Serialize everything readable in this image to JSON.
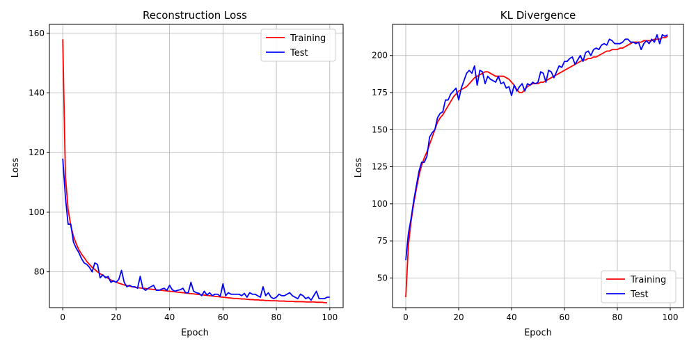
{
  "chart_data": [
    {
      "type": "line",
      "title": "Reconstruction Loss",
      "xlabel": "Epoch",
      "ylabel": "Loss",
      "xlim": [
        -5,
        105
      ],
      "ylim": [
        68,
        163
      ],
      "xticks": [
        0,
        20,
        40,
        60,
        80,
        100
      ],
      "yticks": [
        80,
        100,
        120,
        140,
        160
      ],
      "grid": true,
      "legend_position": "upper right",
      "series": [
        {
          "name": "Training",
          "color": "#ff0000",
          "y": [
            158.0,
            112.0,
            101.0,
            95.5,
            92.0,
            89.5,
            87.5,
            86.0,
            84.8,
            83.5,
            82.5,
            81.5,
            80.8,
            80.0,
            79.4,
            78.8,
            78.3,
            77.8,
            77.3,
            76.9,
            76.5,
            76.2,
            75.9,
            75.6,
            75.4,
            75.2,
            75.0,
            74.8,
            74.7,
            74.6,
            74.5,
            74.4,
            74.3,
            74.2,
            74.1,
            74.0,
            73.9,
            73.8,
            73.7,
            73.6,
            73.5,
            73.4,
            73.3,
            73.2,
            73.1,
            73.0,
            72.9,
            72.8,
            72.7,
            72.6,
            72.5,
            72.4,
            72.3,
            72.2,
            72.1,
            72.0,
            71.9,
            71.8,
            71.7,
            71.6,
            71.5,
            71.4,
            71.3,
            71.2,
            71.1,
            71.1,
            71.0,
            70.9,
            70.9,
            70.8,
            70.7,
            70.7,
            70.6,
            70.6,
            70.5,
            70.5,
            70.4,
            70.4,
            70.3,
            70.3,
            70.3,
            70.2,
            70.2,
            70.2,
            70.1,
            70.1,
            70.1,
            70.0,
            70.0,
            70.0,
            70.0,
            69.9,
            69.9,
            69.9,
            69.9,
            69.8,
            69.8,
            69.8,
            69.7,
            69.6
          ]
        },
        {
          "name": "Test",
          "color": "#0000ff",
          "y": [
            118.0,
            105.0,
            96.0,
            96.0,
            90.0,
            88.0,
            86.5,
            84.5,
            83.0,
            82.5,
            81.5,
            80.0,
            83.0,
            82.5,
            78.0,
            79.0,
            78.0,
            78.5,
            76.5,
            77.0,
            76.5,
            77.5,
            80.5,
            76.5,
            75.0,
            75.5,
            75.0,
            75.0,
            74.5,
            78.5,
            74.5,
            73.8,
            74.5,
            75.0,
            75.5,
            73.8,
            73.8,
            74.2,
            74.5,
            73.8,
            75.5,
            74.0,
            73.5,
            73.8,
            74.0,
            74.5,
            73.0,
            73.0,
            76.5,
            73.5,
            73.0,
            72.8,
            72.0,
            73.5,
            72.2,
            73.0,
            72.0,
            72.5,
            72.5,
            71.8,
            76.0,
            72.0,
            73.0,
            72.5,
            72.5,
            72.5,
            72.5,
            72.0,
            72.8,
            71.5,
            73.0,
            72.5,
            72.5,
            72.0,
            71.5,
            75.0,
            72.0,
            73.0,
            71.5,
            71.0,
            71.5,
            72.5,
            72.0,
            72.0,
            72.5,
            73.0,
            72.0,
            71.5,
            71.0,
            72.5,
            72.0,
            71.0,
            71.5,
            70.5,
            72.0,
            73.5,
            71.0,
            71.0,
            71.0,
            71.5,
            71.5
          ]
        }
      ]
    },
    {
      "type": "line",
      "title": "KL Divergence",
      "xlabel": "Epoch",
      "ylabel": "Loss",
      "xlim": [
        -5,
        105
      ],
      "ylim": [
        30,
        221
      ],
      "xticks": [
        0,
        20,
        40,
        60,
        80,
        100
      ],
      "yticks": [
        50,
        75,
        100,
        125,
        150,
        175,
        200
      ],
      "grid": true,
      "legend_position": "lower right",
      "series": [
        {
          "name": "Training",
          "color": "#ff0000",
          "y": [
            37,
            72,
            88,
            100,
            110,
            119,
            126,
            131,
            135,
            140,
            145,
            150,
            155,
            158,
            160,
            163,
            166,
            169,
            172,
            174,
            176,
            177,
            178,
            179,
            181,
            183,
            185,
            186,
            187,
            188,
            189,
            189,
            188,
            187,
            186,
            186,
            186,
            186,
            185,
            184,
            182,
            180,
            177,
            175,
            175,
            177,
            179,
            180,
            181,
            181,
            181,
            182,
            182,
            183,
            184,
            185,
            186,
            187,
            188,
            189,
            190,
            191,
            192,
            193,
            194,
            195,
            196,
            197,
            197,
            198,
            198,
            199,
            199,
            200,
            201,
            202,
            203,
            203,
            204,
            204,
            204,
            205,
            205,
            206,
            207,
            208,
            209,
            209,
            209,
            209,
            210,
            210,
            210,
            210,
            211,
            211,
            211,
            212,
            212,
            213
          ]
        },
        {
          "name": "Test",
          "color": "#0000ff",
          "y": [
            62,
            80,
            90,
            102,
            112,
            122,
            128,
            128,
            132,
            145,
            148,
            150,
            158,
            161,
            162,
            170,
            170,
            174,
            176,
            178,
            170,
            178,
            183,
            188,
            190,
            188,
            193,
            180,
            190,
            189,
            181,
            186,
            184,
            183,
            182,
            186,
            181,
            182,
            178,
            179,
            173,
            180,
            176,
            179,
            181,
            176,
            181,
            180,
            182,
            181,
            182,
            189,
            188,
            182,
            190,
            189,
            185,
            189,
            193,
            192,
            196,
            196,
            198,
            199,
            194,
            197,
            200,
            196,
            202,
            203,
            200,
            204,
            205,
            204,
            207,
            208,
            207,
            211,
            210,
            208,
            208,
            208,
            209,
            211,
            211,
            209,
            209,
            208,
            209,
            204,
            208,
            210,
            208,
            211,
            209,
            214,
            208,
            214,
            213,
            214
          ]
        }
      ]
    }
  ]
}
